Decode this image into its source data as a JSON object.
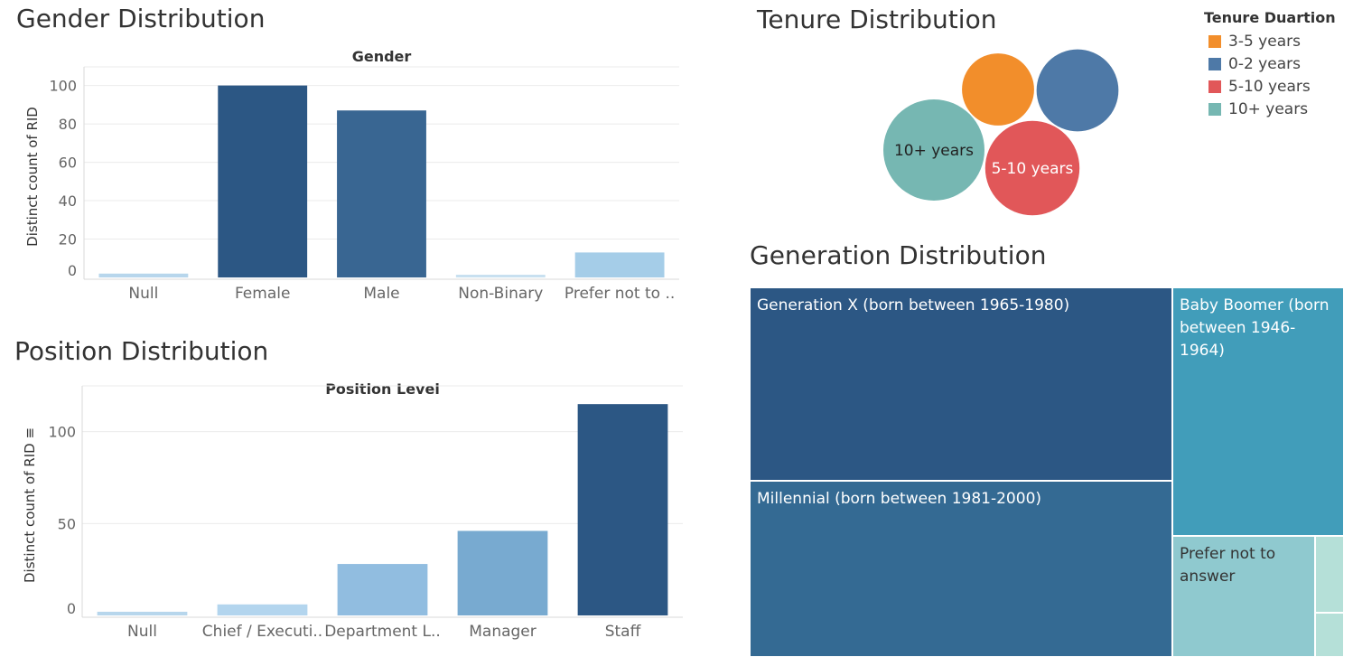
{
  "titles": {
    "gender": "Gender Distribution",
    "position": "Position Distribution",
    "tenure": "Tenure Distribution",
    "generation": "Generation Distribution"
  },
  "chart_data": [
    {
      "id": "gender",
      "type": "bar",
      "header": "Gender",
      "ylabel": "Distinct count of RID",
      "categories": [
        "Null",
        "Female",
        "Male",
        "Non-Binary",
        "Prefer not to .."
      ],
      "values": [
        2,
        100,
        87,
        0.5,
        13
      ],
      "colors": [
        "#b7d6ec",
        "#2c5784",
        "#396692",
        "#c8e0f0",
        "#a5cde8"
      ],
      "ylim": [
        0,
        105
      ],
      "ticks": [
        0,
        20,
        40,
        60,
        80,
        100
      ],
      "grid": true
    },
    {
      "id": "position",
      "type": "bar",
      "header": "Position Level",
      "ylabel": "Distinct count of RID ≡",
      "categories": [
        "Null",
        "Chief / Executi..",
        "Department L..",
        "Manager",
        "Staff"
      ],
      "values": [
        2,
        6,
        28,
        46,
        115
      ],
      "colors": [
        "#b7d6ec",
        "#b3d5ee",
        "#91bde0",
        "#78aad0",
        "#2c5784"
      ],
      "ylim": [
        0,
        120
      ],
      "ticks": [
        0,
        50,
        100
      ],
      "grid": true
    },
    {
      "id": "tenure",
      "type": "bubble",
      "legend_title": "Tenure Duartion",
      "legend_position": "top-right",
      "items": [
        {
          "label": "3-5 years",
          "color": "#f28e2b",
          "value": 31,
          "show_label": false,
          "text_color": "#ffffff"
        },
        {
          "label": "0-2 years",
          "color": "#4e79a7",
          "value": 40,
          "show_label": false,
          "text_color": "#ffffff"
        },
        {
          "label": "5-10 years",
          "color": "#e15759",
          "value": 53,
          "show_label": true,
          "text_color": "#ffffff"
        },
        {
          "label": "10+ years",
          "color": "#76b7b2",
          "value": 61,
          "show_label": true,
          "text_color": "#222222"
        }
      ]
    },
    {
      "id": "generation",
      "type": "treemap",
      "items": [
        {
          "label": "Generation X (born between 1965-1980)",
          "color": "#2c5784",
          "text_color": "#ffffff"
        },
        {
          "label": "Millennial (born between 1981-2000)",
          "color": "#346a93",
          "text_color": "#ffffff"
        },
        {
          "label": "Baby Boomer (born between 1946-1964)",
          "color": "#419dba",
          "text_color": "#ffffff"
        },
        {
          "label": "Prefer not to answer",
          "color": "#8fc9cf",
          "text_color": "#333333"
        },
        {
          "label": "",
          "color": "#b5e0d8",
          "text_color": "#333333"
        },
        {
          "label": "",
          "color": "#b5e0d8",
          "text_color": "#333333"
        }
      ]
    }
  ]
}
